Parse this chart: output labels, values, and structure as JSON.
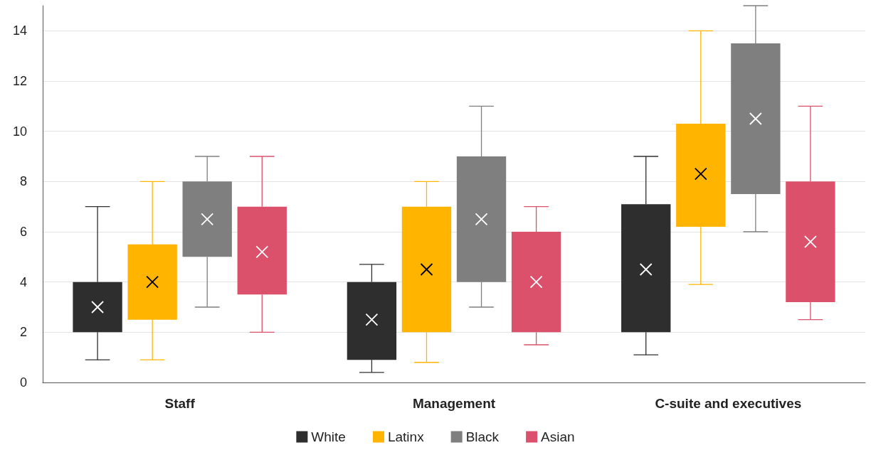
{
  "chart_data": {
    "type": "box",
    "categories": [
      "Staff",
      "Management",
      "C-suite and executives"
    ],
    "series": [
      {
        "name": "White",
        "color": "#2e2e2e",
        "boxes": [
          {
            "low": 0.9,
            "q1": 2,
            "q3": 4,
            "high": 7,
            "mean": 3
          },
          {
            "low": 0.4,
            "q1": 0.9,
            "q3": 4,
            "high": 4.7,
            "mean": 2.5
          },
          {
            "low": 1.1,
            "q1": 2,
            "q3": 7.1,
            "high": 9,
            "mean": 4.5
          }
        ]
      },
      {
        "name": "Latinx",
        "color": "#ffb400",
        "boxes": [
          {
            "low": 0.9,
            "q1": 2.5,
            "q3": 5.5,
            "high": 8,
            "mean": 4
          },
          {
            "low": 0.8,
            "q1": 2,
            "q3": 7,
            "high": 8,
            "mean": 4.5
          },
          {
            "low": 3.9,
            "q1": 6.2,
            "q3": 10.3,
            "high": 14,
            "mean": 8.3
          }
        ]
      },
      {
        "name": "Black",
        "color": "#7f7f7f",
        "boxes": [
          {
            "low": 3,
            "q1": 5,
            "q3": 8,
            "high": 9,
            "mean": 6.5
          },
          {
            "low": 3,
            "q1": 4,
            "q3": 9,
            "high": 11,
            "mean": 6.5
          },
          {
            "low": 6,
            "q1": 7.5,
            "q3": 13.5,
            "high": 15,
            "mean": 10.5
          }
        ]
      },
      {
        "name": "Asian",
        "color": "#db516b",
        "boxes": [
          {
            "low": 2,
            "q1": 3.5,
            "q3": 7,
            "high": 9,
            "mean": 5.2
          },
          {
            "low": 1.5,
            "q1": 2,
            "q3": 6,
            "high": 7,
            "mean": 4
          },
          {
            "low": 2.5,
            "q1": 3.2,
            "q3": 8,
            "high": 11,
            "mean": 5.6
          }
        ]
      }
    ],
    "ylim": [
      0,
      15
    ],
    "yticks": [
      0,
      2,
      4,
      6,
      8,
      10,
      12,
      14
    ],
    "grid": "y",
    "legend": "bottom",
    "marker": "cross"
  }
}
